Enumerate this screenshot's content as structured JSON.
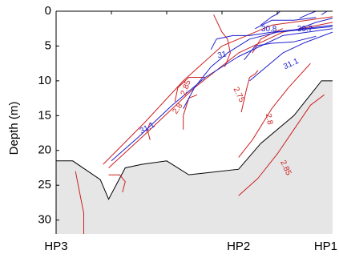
{
  "chart_data": {
    "type": "line",
    "title": "",
    "xlabel": "",
    "ylabel": "Depth (m)",
    "ylim": [
      32,
      0
    ],
    "y_ticks": [
      0,
      5,
      10,
      15,
      20,
      25,
      30
    ],
    "y_tick_labels": [
      "0",
      "5",
      "10",
      "15",
      "20",
      "25",
      "30"
    ],
    "x_domain": [
      0,
      100
    ],
    "x_tick_positions": [
      0,
      66,
      100
    ],
    "x_tick_labels": [
      "HP3",
      "HP2",
      "HP1"
    ],
    "grid": false,
    "colors": {
      "bottom": "#e6e6e6",
      "red": "#cc1f1f",
      "blue": "#1f1fcc",
      "axis": "#000000"
    },
    "bottom_profile": {
      "name": "bottom",
      "points": [
        [
          0,
          21.5
        ],
        [
          6,
          21.5
        ],
        [
          16,
          24.2
        ],
        [
          19,
          27
        ],
        [
          25,
          22.5
        ],
        [
          31,
          22
        ],
        [
          40,
          21.5
        ],
        [
          48,
          23.5
        ],
        [
          66,
          22.7
        ],
        [
          74,
          19
        ],
        [
          86,
          15
        ],
        [
          96,
          10
        ],
        [
          100,
          10
        ]
      ]
    },
    "series": [
      {
        "color": "red",
        "points": [
          [
            19,
            23.5
          ],
          [
            23,
            23.5
          ],
          [
            25,
            24.5
          ],
          [
            24,
            26
          ]
        ]
      },
      {
        "color": "red",
        "points": [
          [
            7,
            23
          ],
          [
            8,
            25
          ],
          [
            9,
            27
          ],
          [
            10,
            29
          ],
          [
            10,
            32
          ]
        ]
      },
      {
        "color": "red",
        "points": [
          [
            17,
            22
          ],
          [
            32,
            16
          ],
          [
            46,
            10
          ],
          [
            60,
            5
          ],
          [
            78,
            2
          ],
          [
            100,
            0.8
          ]
        ]
      },
      {
        "color": "red",
        "points": [
          [
            19,
            22.5
          ],
          [
            34,
            17
          ],
          [
            50,
            11
          ],
          [
            66,
            6
          ],
          [
            82,
            3
          ],
          [
            100,
            1.6
          ]
        ]
      },
      {
        "color": "red",
        "points": [
          [
            34,
            16
          ],
          [
            33,
            17
          ],
          [
            34,
            18.5
          ]
        ]
      },
      {
        "color": "red",
        "points": [
          [
            43,
            13
          ],
          [
            44,
            11
          ],
          [
            48,
            9.5
          ],
          [
            54,
            9.5
          ]
        ]
      },
      {
        "color": "red",
        "points": [
          [
            46,
            17
          ],
          [
            46,
            15
          ],
          [
            48,
            12.5
          ],
          [
            51,
            12
          ]
        ]
      },
      {
        "color": "red",
        "points": [
          [
            57,
            0.5
          ],
          [
            60,
            3
          ],
          [
            62,
            4
          ],
          [
            63,
            6
          ],
          [
            61,
            8
          ]
        ]
      },
      {
        "color": "red",
        "points": [
          [
            67,
            14.5
          ],
          [
            69,
            11
          ],
          [
            70,
            9.5
          ],
          [
            72,
            9
          ],
          [
            73,
            8.5
          ]
        ]
      },
      {
        "color": "red",
        "points": [
          [
            71,
            6
          ],
          [
            74,
            4
          ],
          [
            79,
            3
          ],
          [
            82,
            2.5
          ]
        ]
      },
      {
        "color": "red",
        "points": [
          [
            66,
            21
          ],
          [
            71,
            18.5
          ],
          [
            78,
            14
          ],
          [
            84,
            11
          ],
          [
            92,
            7.5
          ]
        ]
      },
      {
        "color": "red",
        "points": [
          [
            66,
            26.5
          ],
          [
            73,
            24
          ],
          [
            80,
            20.5
          ],
          [
            86,
            17
          ],
          [
            92,
            13.5
          ],
          [
            97,
            12
          ]
        ]
      },
      {
        "color": "blue",
        "points": [
          [
            20,
            21.5
          ],
          [
            30,
            18
          ],
          [
            42,
            13.5
          ],
          [
            54,
            9.5
          ],
          [
            66,
            6.5
          ],
          [
            82,
            3.5
          ],
          [
            100,
            2.5
          ]
        ]
      },
      {
        "color": "blue",
        "points": [
          [
            46,
            14
          ],
          [
            50,
            11
          ],
          [
            56,
            8
          ],
          [
            62,
            6
          ],
          [
            70,
            4
          ],
          [
            80,
            3
          ],
          [
            100,
            2.2
          ]
        ]
      },
      {
        "color": "blue",
        "points": [
          [
            56,
            5.5
          ],
          [
            58,
            4
          ],
          [
            64,
            3.5
          ],
          [
            70,
            3.5
          ],
          [
            78,
            3
          ],
          [
            90,
            2.5
          ],
          [
            100,
            2
          ]
        ]
      },
      {
        "color": "blue",
        "points": [
          [
            68,
            7
          ],
          [
            72,
            5
          ],
          [
            78,
            4.6
          ],
          [
            86,
            4.4
          ],
          [
            94,
            3.6
          ]
        ]
      },
      {
        "color": "blue",
        "points": [
          [
            70,
            10
          ],
          [
            76,
            8
          ],
          [
            82,
            6
          ],
          [
            90,
            4.5
          ],
          [
            100,
            3
          ]
        ]
      },
      {
        "color": "blue",
        "points": [
          [
            72,
            2.5
          ],
          [
            78,
            1.3
          ],
          [
            86,
            1.3
          ],
          [
            94,
            0.9
          ]
        ]
      },
      {
        "color": "blue",
        "points": [
          [
            74,
            2
          ],
          [
            78,
            0.8
          ],
          [
            80,
            0.4
          ],
          [
            81,
            0
          ]
        ]
      },
      {
        "color": "blue",
        "points": [
          [
            88,
            1
          ],
          [
            92,
            0.3
          ],
          [
            94,
            0
          ]
        ]
      },
      {
        "color": "blue",
        "points": [
          [
            96,
            0.5
          ],
          [
            98,
            0
          ],
          [
            99,
            0
          ]
        ]
      },
      {
        "color": "blue",
        "points": [
          [
            88,
            2.5
          ],
          [
            94,
            1.6
          ],
          [
            100,
            1
          ]
        ]
      }
    ],
    "annotations": [
      {
        "text": "30.8",
        "x": 77,
        "y": 2.6,
        "color": "blue",
        "angle": 0
      },
      {
        "text": "30.7",
        "x": 90,
        "y": 2.6,
        "color": "blue",
        "angle": 0
      },
      {
        "text": "31",
        "x": 60,
        "y": 6.3,
        "color": "blue",
        "angle": -12
      },
      {
        "text": "31.1",
        "x": 85,
        "y": 7.6,
        "color": "blue",
        "angle": -25
      },
      {
        "text": "31.1",
        "x": 33,
        "y": 16.8,
        "color": "blue",
        "angle": -28
      },
      {
        "text": "2.85",
        "x": 47,
        "y": 11,
        "color": "red",
        "angle": -70
      },
      {
        "text": "2.8",
        "x": 44,
        "y": 14,
        "color": "red",
        "angle": -55
      },
      {
        "text": "2.75",
        "x": 66,
        "y": 12,
        "color": "red",
        "angle": 65
      },
      {
        "text": "2.8",
        "x": 77,
        "y": 15.5,
        "color": "red",
        "angle": 80
      },
      {
        "text": "2.85",
        "x": 83,
        "y": 22.5,
        "color": "red",
        "angle": 65
      }
    ]
  }
}
